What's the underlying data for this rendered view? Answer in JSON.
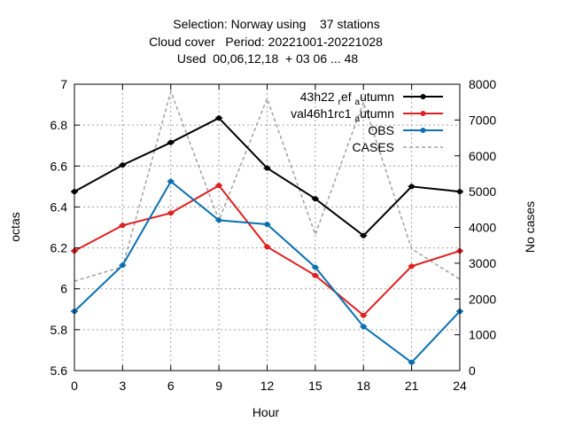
{
  "chart_data": {
    "type": "line",
    "title_lines": [
      "Selection: Norway using    37 stations",
      "Cloud cover   Period: 20221001-20221028",
      "Used  00,06,12,18  + 03 06 ... 48"
    ],
    "xlabel": "Hour",
    "ylabel": "octas",
    "y2label": "No cases",
    "x": [
      0,
      3,
      6,
      9,
      12,
      15,
      18,
      21,
      24
    ],
    "x_ticks": [
      "0",
      "3",
      "6",
      "9",
      "12",
      "15",
      "18",
      "21",
      "24"
    ],
    "xlim": [
      0,
      24
    ],
    "ylim": [
      5.6,
      7.0
    ],
    "y_ticks": [
      "5.6",
      "5.8",
      "6",
      "6.2",
      "6.4",
      "6.6",
      "6.8",
      "7"
    ],
    "y2lim": [
      0,
      8000
    ],
    "y2_ticks": [
      "0",
      "1000",
      "2000",
      "3000",
      "4000",
      "5000",
      "6000",
      "7000",
      "8000"
    ],
    "grid": true,
    "legend_position": "top-right",
    "series": [
      {
        "name": "43h22 ref autumn",
        "name_parts": {
          "a": "43h22 ",
          "b": "r",
          "c": "ef ",
          "d": "a",
          "e": "utumn"
        },
        "axis": "left",
        "color": "#000000",
        "style": "solid",
        "values": [
          6.475,
          6.605,
          6.715,
          6.835,
          6.59,
          6.44,
          6.26,
          6.5,
          6.475
        ]
      },
      {
        "name": "val46h1rc1 autumn",
        "name_parts": {
          "a": "val46h1rc1 ",
          "b": "",
          "c": "",
          "d": "a",
          "e": "utumn"
        },
        "axis": "left",
        "color": "#e02020",
        "style": "solid",
        "values": [
          6.185,
          6.31,
          6.37,
          6.505,
          6.205,
          6.065,
          5.87,
          6.11,
          6.185
        ]
      },
      {
        "name": "OBS",
        "axis": "left",
        "color": "#0a70b0",
        "style": "solid",
        "values": [
          5.89,
          6.115,
          6.525,
          6.335,
          6.315,
          6.105,
          5.815,
          5.64,
          5.89
        ]
      },
      {
        "name": "CASES",
        "axis": "right",
        "color": "#a0a0a0",
        "style": "dashed",
        "x": [
          0,
          3,
          6,
          9,
          12,
          15,
          18,
          21,
          24
        ],
        "values": [
          2500,
          2900,
          7800,
          4200,
          7600,
          3800,
          7500,
          3400,
          2550
        ]
      }
    ]
  },
  "colors": {
    "axis": "#000000",
    "grid": "#a0a0a0"
  }
}
